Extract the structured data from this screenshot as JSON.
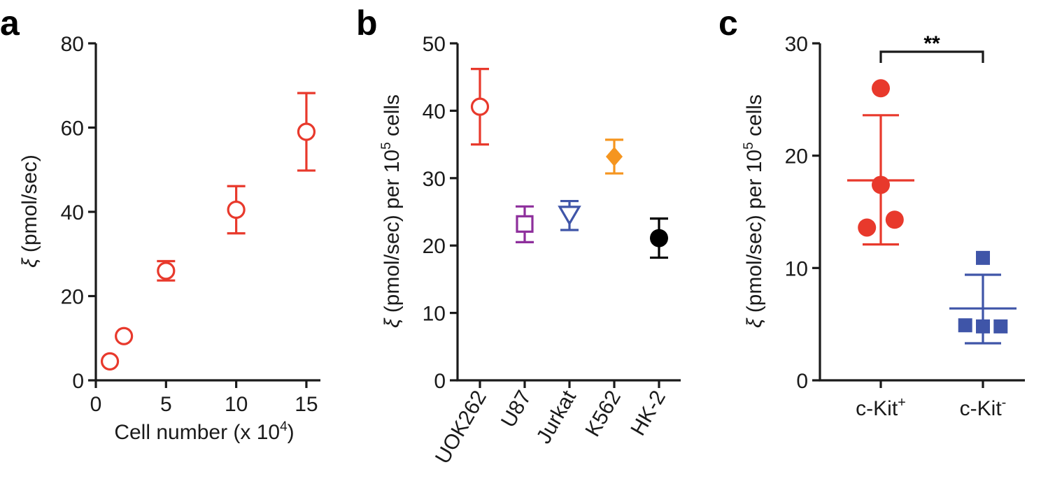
{
  "colors": {
    "red": "#e8392c",
    "purple": "#8e2f9c",
    "blue": "#3f55a8",
    "orange": "#f5951f",
    "black": "#000000",
    "axis": "#1a1a1a"
  },
  "chart_data": [
    {
      "panel": "a",
      "type": "scatter",
      "xlabel": "Cell number (x 10",
      "xlabel_sup": "4",
      "xlabel_end": ")",
      "ylabel_sym": "ξ",
      "ylabel": " (pmol/sec)",
      "xlim": [
        0,
        16
      ],
      "ylim": [
        0,
        80
      ],
      "xticks": [
        0,
        5,
        10,
        15
      ],
      "yticks": [
        0,
        20,
        40,
        60,
        80
      ],
      "marker": "open-circle",
      "color": "#e8392c",
      "points": [
        {
          "x": 1,
          "y": 4.5,
          "err": null
        },
        {
          "x": 2,
          "y": 10.5,
          "err": null
        },
        {
          "x": 5,
          "y": 26,
          "err": 2.3
        },
        {
          "x": 10,
          "y": 40.5,
          "err": 5.6
        },
        {
          "x": 15,
          "y": 59,
          "err": 9.2
        }
      ]
    },
    {
      "panel": "b",
      "type": "scatter",
      "ylabel_sym": "ξ",
      "ylabel": " (pmol/sec) per 10",
      "ylabel_sup": "5",
      "ylabel_end": " cells",
      "ylim": [
        0,
        50
      ],
      "yticks": [
        0,
        10,
        20,
        30,
        40,
        50
      ],
      "categories": [
        "UOK262",
        "U87",
        "Jurkat",
        "K562",
        "HK-2"
      ],
      "points": [
        {
          "category": "UOK262",
          "y": 40.6,
          "err_low": 5.6,
          "err_high": 5.6,
          "marker": "open-circle",
          "color": "#e8392c"
        },
        {
          "category": "U87",
          "y": 23.2,
          "err_low": 2.7,
          "err_high": 2.6,
          "marker": "open-square",
          "color": "#8e2f9c"
        },
        {
          "category": "Jurkat",
          "y": 24.6,
          "err_low": 2.3,
          "err_high": 2.0,
          "marker": "open-triangle-down",
          "color": "#3f55a8"
        },
        {
          "category": "K562",
          "y": 33.2,
          "err_low": 2.5,
          "err_high": 2.5,
          "marker": "filled-diamond",
          "color": "#f5951f"
        },
        {
          "category": "HK-2",
          "y": 21.1,
          "err_low": 2.9,
          "err_high": 2.9,
          "marker": "filled-circle",
          "color": "#000000"
        }
      ]
    },
    {
      "panel": "c",
      "type": "scatter",
      "ylabel_sym": "ξ",
      "ylabel": " (pmol/sec) per 10",
      "ylabel_sup": "5",
      "ylabel_end": " cells",
      "ylim": [
        0,
        30
      ],
      "yticks": [
        0,
        10,
        20,
        30
      ],
      "significance": "**",
      "groups": [
        {
          "name": "c-Kit",
          "sup": "+",
          "color": "#e8392c",
          "marker": "filled-circle",
          "values": [
            26.0,
            17.4,
            14.3,
            13.6
          ],
          "x_offsets": [
            0,
            0,
            0.18,
            -0.18
          ],
          "mean": 17.8,
          "sd_low": 12.1,
          "sd_high": 23.6
        },
        {
          "name": "c-Kit",
          "sup": "-",
          "color": "#3f55a8",
          "marker": "filled-square",
          "values": [
            10.9,
            4.9,
            4.8,
            4.8
          ],
          "x_offsets": [
            0,
            -0.23,
            0,
            0.23
          ],
          "mean": 6.4,
          "sd_low": 3.3,
          "sd_high": 9.4
        }
      ]
    }
  ]
}
